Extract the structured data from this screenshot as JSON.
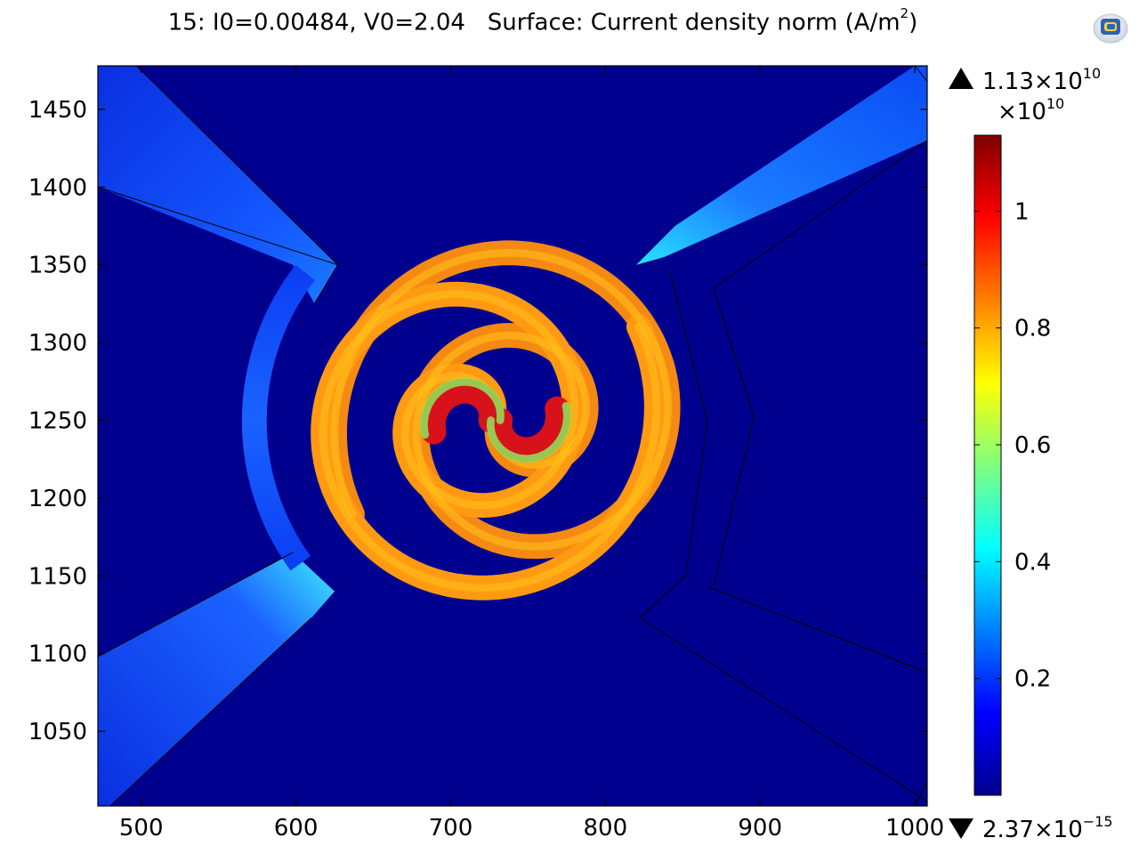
{
  "title": {
    "prefix": "15: I0=0.00484, V0=2.04",
    "surface": "Surface: Current density norm (A/m",
    "unit_exp": "2",
    "close": ")"
  },
  "logo": {
    "icon": "comsol-logo-icon"
  },
  "chart_data": {
    "type": "heatmap",
    "title": "15: I0=0.00484, V0=2.04   Surface: Current density norm (A/m2)",
    "xlim": [
      472,
      1008
    ],
    "ylim": [
      1002,
      1478
    ],
    "x_ticks": [
      500,
      600,
      700,
      800,
      900,
      1000
    ],
    "y_ticks": [
      1050,
      1100,
      1150,
      1200,
      1250,
      1300,
      1350,
      1400,
      1450
    ],
    "colormap": "rainbow",
    "colorbar": {
      "max_label": "1.13×10",
      "max_exp": "10",
      "multiplier_label": "×10",
      "multiplier_exp": "10",
      "min_label": "2.37×10",
      "min_exp": "−15",
      "ticks": [
        0.2,
        0.4,
        0.6,
        0.8,
        1
      ],
      "tick_labels": [
        "0.2",
        "0.4",
        "0.6",
        "0.8",
        "1"
      ],
      "range": [
        0,
        1.13
      ]
    },
    "background_value": 0.0,
    "spiral": {
      "center": [
        728,
        1250
      ],
      "typical_value": 0.85,
      "inner_peak": 1.13
    },
    "leads_value": 0.15
  }
}
